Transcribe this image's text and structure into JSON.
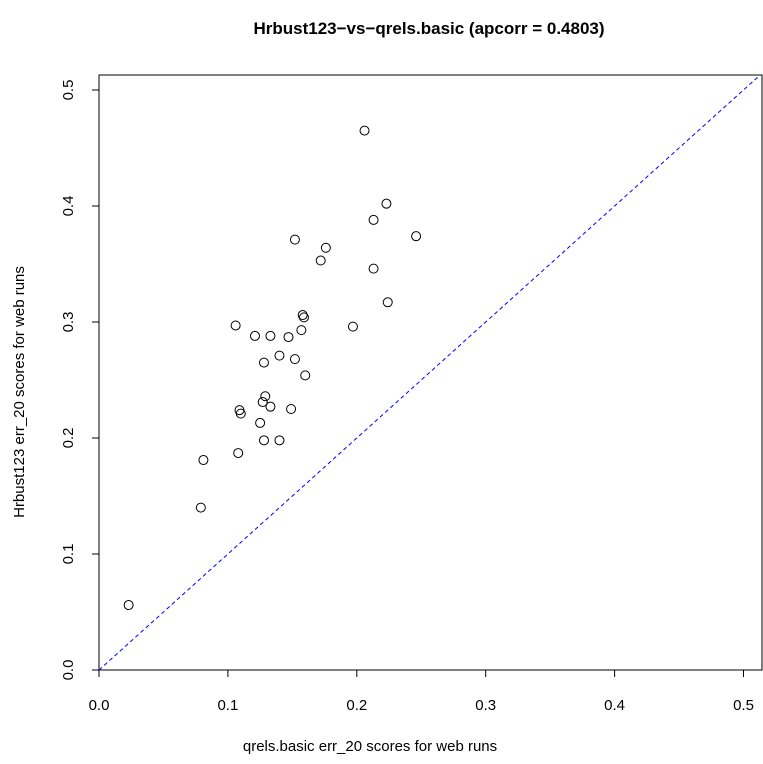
{
  "chart_data": {
    "type": "scatter",
    "title": "Hrbust123−vs−qrels.basic (apcorr = 0.4803)",
    "xlabel": "qrels.basic err_20 scores for web runs",
    "ylabel": "Hrbust123 err_20 scores for web runs",
    "xlim": [
      0,
      0.51
    ],
    "ylim": [
      0,
      0.51
    ],
    "xticks": [
      0.0,
      0.1,
      0.2,
      0.3,
      0.4,
      0.5
    ],
    "yticks": [
      0.0,
      0.1,
      0.2,
      0.3,
      0.4,
      0.5
    ],
    "xtick_labels": [
      "0.0",
      "0.1",
      "0.2",
      "0.3",
      "0.4",
      "0.5"
    ],
    "ytick_labels": [
      "0.0",
      "0.1",
      "0.2",
      "0.3",
      "0.4",
      "0.5"
    ],
    "grid": false,
    "reference_line": {
      "type": "y=x",
      "color": "#0000ff",
      "style": "dashed"
    },
    "marker": {
      "shape": "open-circle",
      "color": "#000000"
    },
    "points": [
      {
        "x": 0.023,
        "y": 0.056
      },
      {
        "x": 0.079,
        "y": 0.14
      },
      {
        "x": 0.081,
        "y": 0.181
      },
      {
        "x": 0.106,
        "y": 0.297
      },
      {
        "x": 0.108,
        "y": 0.187
      },
      {
        "x": 0.109,
        "y": 0.224
      },
      {
        "x": 0.11,
        "y": 0.221
      },
      {
        "x": 0.121,
        "y": 0.288
      },
      {
        "x": 0.125,
        "y": 0.213
      },
      {
        "x": 0.127,
        "y": 0.231
      },
      {
        "x": 0.128,
        "y": 0.198
      },
      {
        "x": 0.128,
        "y": 0.265
      },
      {
        "x": 0.129,
        "y": 0.236
      },
      {
        "x": 0.133,
        "y": 0.288
      },
      {
        "x": 0.133,
        "y": 0.227
      },
      {
        "x": 0.14,
        "y": 0.198
      },
      {
        "x": 0.14,
        "y": 0.271
      },
      {
        "x": 0.147,
        "y": 0.287
      },
      {
        "x": 0.149,
        "y": 0.225
      },
      {
        "x": 0.152,
        "y": 0.268
      },
      {
        "x": 0.152,
        "y": 0.371
      },
      {
        "x": 0.157,
        "y": 0.293
      },
      {
        "x": 0.158,
        "y": 0.306
      },
      {
        "x": 0.159,
        "y": 0.304
      },
      {
        "x": 0.16,
        "y": 0.254
      },
      {
        "x": 0.172,
        "y": 0.353
      },
      {
        "x": 0.176,
        "y": 0.364
      },
      {
        "x": 0.197,
        "y": 0.296
      },
      {
        "x": 0.206,
        "y": 0.465
      },
      {
        "x": 0.213,
        "y": 0.388
      },
      {
        "x": 0.213,
        "y": 0.346
      },
      {
        "x": 0.223,
        "y": 0.402
      },
      {
        "x": 0.224,
        "y": 0.317
      },
      {
        "x": 0.246,
        "y": 0.374
      }
    ]
  }
}
